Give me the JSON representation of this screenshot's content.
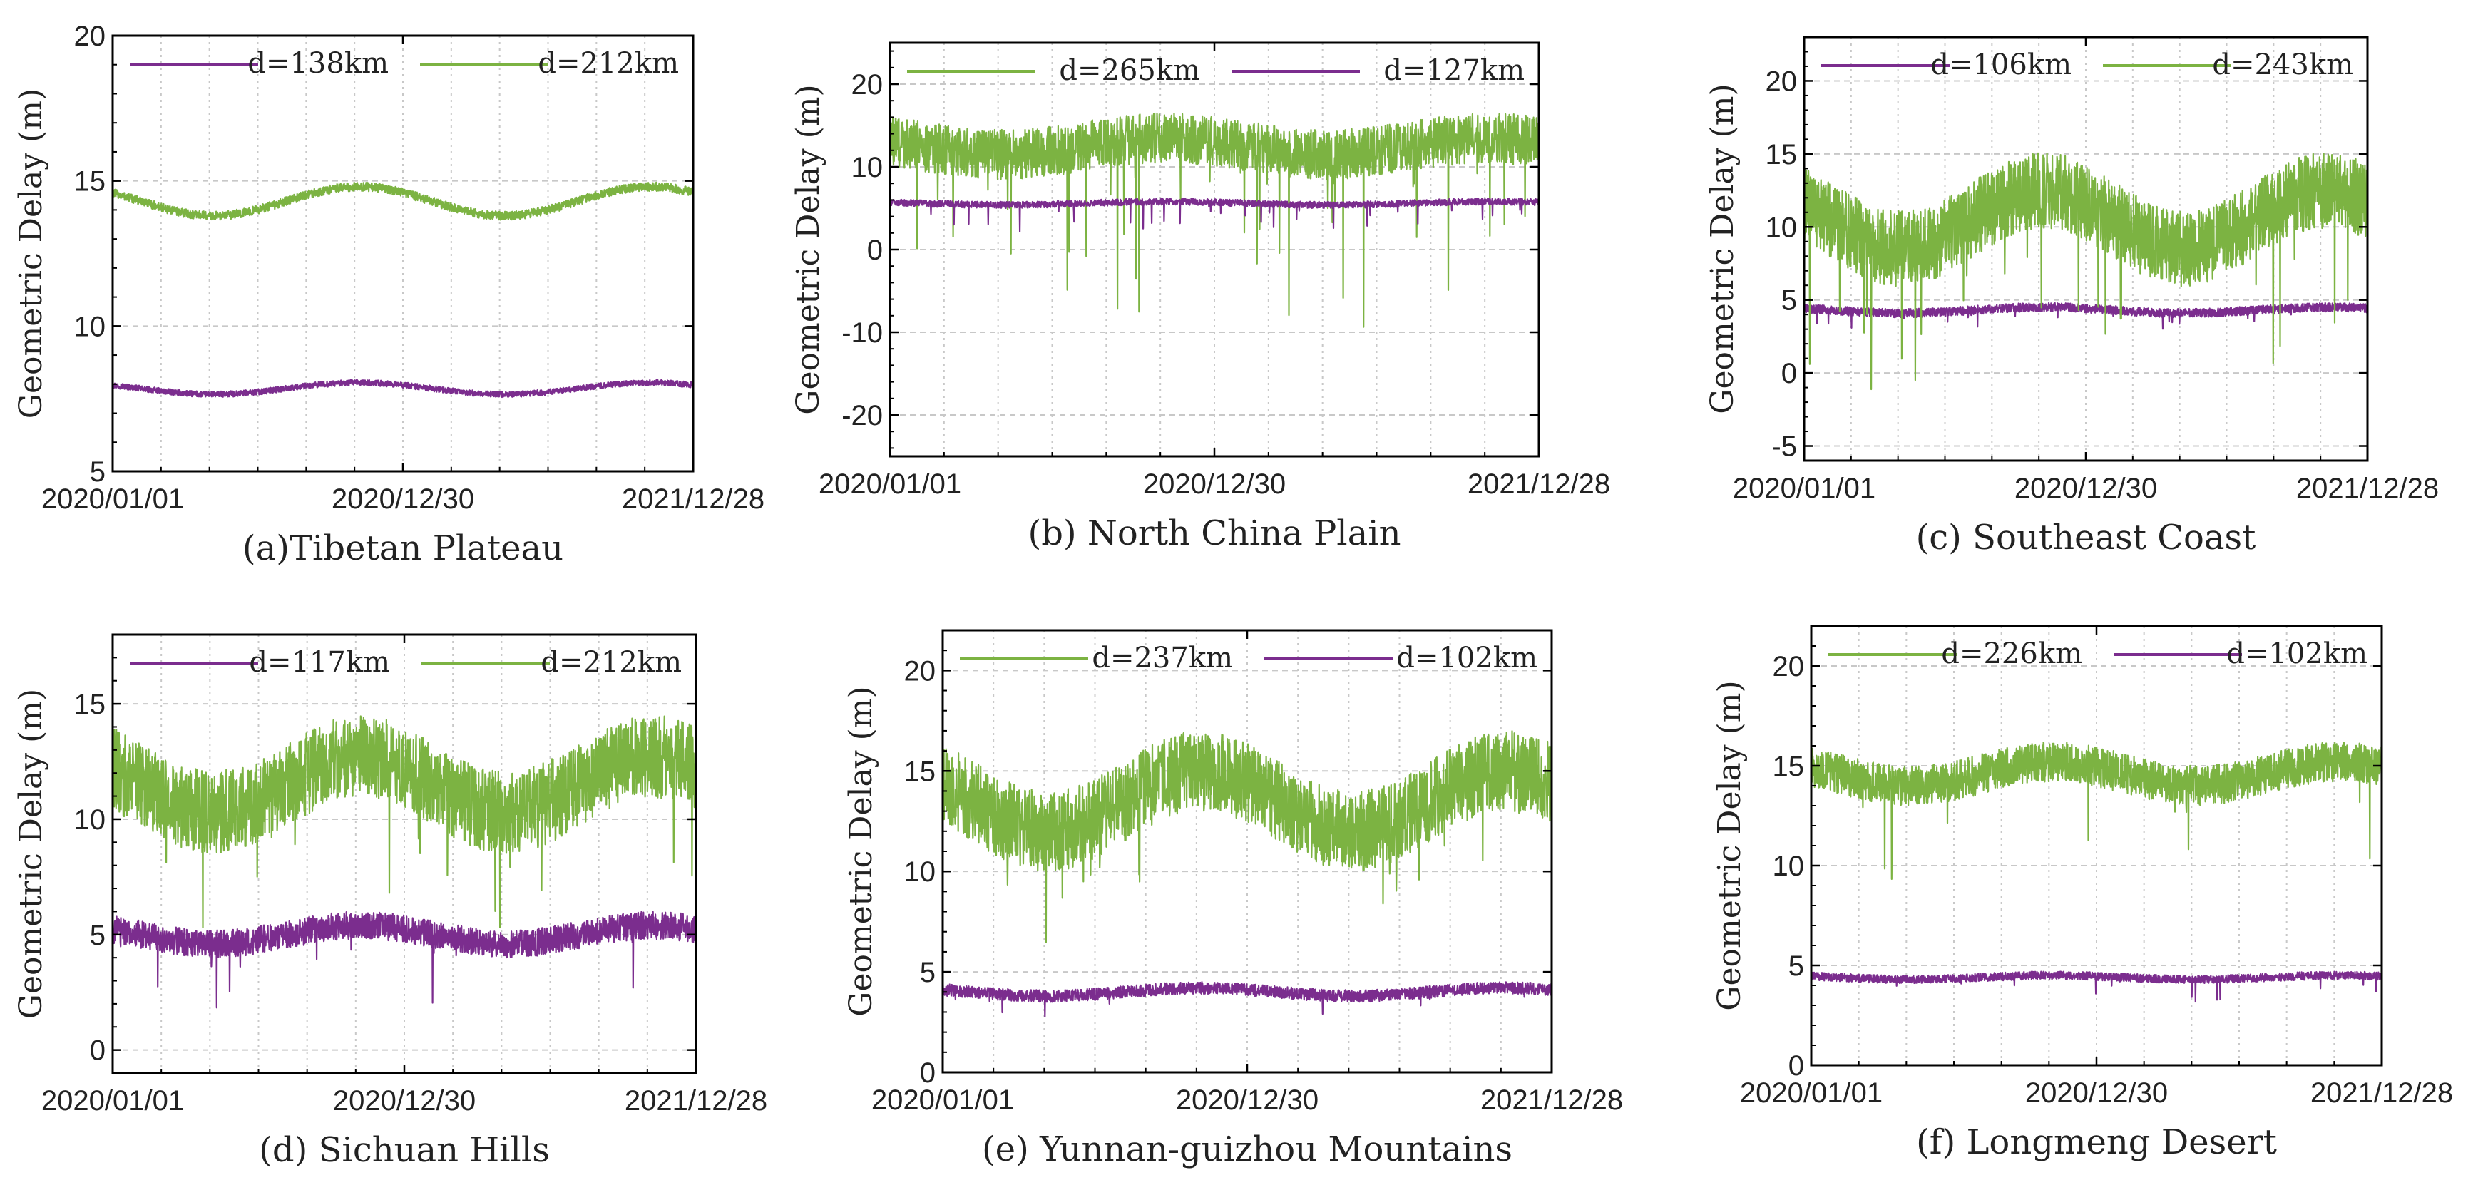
{
  "figure": {
    "colors": {
      "green": "#7cb342",
      "purple": "#7b2d8e",
      "grid": "#c8c8c8",
      "axis": "#000000"
    }
  },
  "chart_data": [
    {
      "type": "line",
      "panel": "a",
      "caption": "(a)Tibetan Plateau",
      "ylabel": "Geometric Delay (m)",
      "xlabel": "",
      "x_tick_labels": [
        "2020/01/01",
        "2020/12/30",
        "2021/12/28"
      ],
      "xlim": [
        0,
        727
      ],
      "ylim": [
        5,
        20
      ],
      "y_ticks": [
        5,
        10,
        15,
        20
      ],
      "legend_position": "top",
      "series": [
        {
          "name": "d=138km",
          "color": "#7b2d8e",
          "base_mean": 7.85,
          "seasonal_amplitude": 0.2,
          "noise": 0.1,
          "spike_rate": 0,
          "spike_depth": 0
        },
        {
          "name": "d=212km",
          "color": "#7cb342",
          "base_mean": 14.3,
          "seasonal_amplitude": 0.5,
          "noise": 0.15,
          "spike_rate": 0,
          "spike_depth": 0
        }
      ]
    },
    {
      "type": "line",
      "panel": "b",
      "caption": "(b) North China Plain",
      "ylabel": "Geometric Delay (m)",
      "xlabel": "",
      "x_tick_labels": [
        "2020/01/01",
        "2020/12/30",
        "2021/12/28"
      ],
      "xlim": [
        0,
        727
      ],
      "ylim": [
        -25,
        25
      ],
      "y_ticks": [
        -20,
        -10,
        0,
        10,
        20
      ],
      "legend_position": "top",
      "series": [
        {
          "name": "d=265km",
          "color": "#7cb342",
          "base_mean": 12.5,
          "seasonal_amplitude": 1.0,
          "noise": 3.0,
          "spike_rate": 0.02,
          "spike_depth": 20
        },
        {
          "name": "d=127km",
          "color": "#7b2d8e",
          "base_mean": 5.6,
          "seasonal_amplitude": 0.2,
          "noise": 0.4,
          "spike_rate": 0.02,
          "spike_depth": 3
        }
      ]
    },
    {
      "type": "line",
      "panel": "c",
      "caption": "(c) Southeast Coast",
      "ylabel": "Geometric Delay (m)",
      "xlabel": "",
      "x_tick_labels": [
        "2020/01/01",
        "2020/12/30",
        "2021/12/28"
      ],
      "xlim": [
        0,
        727
      ],
      "ylim": [
        -6,
        23
      ],
      "y_ticks": [
        -5,
        0,
        5,
        10,
        15,
        20
      ],
      "legend_position": "top",
      "series": [
        {
          "name": "d=106km",
          "color": "#7b2d8e",
          "base_mean": 4.3,
          "seasonal_amplitude": 0.2,
          "noise": 0.3,
          "spike_rate": 0.01,
          "spike_depth": 1
        },
        {
          "name": "d=243km",
          "color": "#7cb342",
          "base_mean": 10.5,
          "seasonal_amplitude": 2.0,
          "noise": 2.6,
          "spike_rate": 0.02,
          "spike_depth": 10
        }
      ]
    },
    {
      "type": "line",
      "panel": "d",
      "caption": "(d) Sichuan Hills",
      "ylabel": "Geometric Delay (m)",
      "xlabel": "",
      "x_tick_labels": [
        "2020/01/01",
        "2020/12/30",
        "2021/12/28"
      ],
      "xlim": [
        0,
        727
      ],
      "ylim": [
        -1,
        18
      ],
      "y_ticks": [
        0,
        5,
        10,
        15
      ],
      "legend_position": "top",
      "series": [
        {
          "name": "d=117km",
          "color": "#7b2d8e",
          "base_mean": 5.0,
          "seasonal_amplitude": 0.4,
          "noise": 0.6,
          "spike_rate": 0.01,
          "spike_depth": 3
        },
        {
          "name": "d=212km",
          "color": "#7cb342",
          "base_mean": 11.5,
          "seasonal_amplitude": 1.2,
          "noise": 1.8,
          "spike_rate": 0.01,
          "spike_depth": 6
        }
      ]
    },
    {
      "type": "line",
      "panel": "e",
      "caption": "(e) Yunnan-guizhou Mountains",
      "ylabel": "Geometric Delay (m)",
      "xlabel": "",
      "x_tick_labels": [
        "2020/01/01",
        "2020/12/30",
        "2021/12/28"
      ],
      "xlim": [
        0,
        727
      ],
      "ylim": [
        0,
        22
      ],
      "y_ticks": [
        0,
        5,
        10,
        15,
        20
      ],
      "legend_position": "top",
      "series": [
        {
          "name": "d=237km",
          "color": "#7cb342",
          "base_mean": 13.5,
          "seasonal_amplitude": 1.5,
          "noise": 2.0,
          "spike_rate": 0.01,
          "spike_depth": 5
        },
        {
          "name": "d=102km",
          "color": "#7b2d8e",
          "base_mean": 4.0,
          "seasonal_amplitude": 0.2,
          "noise": 0.3,
          "spike_rate": 0.005,
          "spike_depth": 1
        }
      ]
    },
    {
      "type": "line",
      "panel": "f",
      "caption": "(f) Longmeng Desert",
      "ylabel": "Geometric Delay (m)",
      "xlabel": "",
      "x_tick_labels": [
        "2020/01/01",
        "2020/12/30",
        "2021/12/28"
      ],
      "xlim": [
        0,
        727
      ],
      "ylim": [
        0,
        22
      ],
      "y_ticks": [
        0,
        5,
        10,
        15,
        20
      ],
      "legend_position": "top",
      "series": [
        {
          "name": "d=226km",
          "color": "#7cb342",
          "base_mean": 14.6,
          "seasonal_amplitude": 0.6,
          "noise": 1.0,
          "spike_rate": 0.01,
          "spike_depth": 6
        },
        {
          "name": "d=102km",
          "color": "#7b2d8e",
          "base_mean": 4.4,
          "seasonal_amplitude": 0.1,
          "noise": 0.2,
          "spike_rate": 0.01,
          "spike_depth": 1
        }
      ]
    }
  ]
}
